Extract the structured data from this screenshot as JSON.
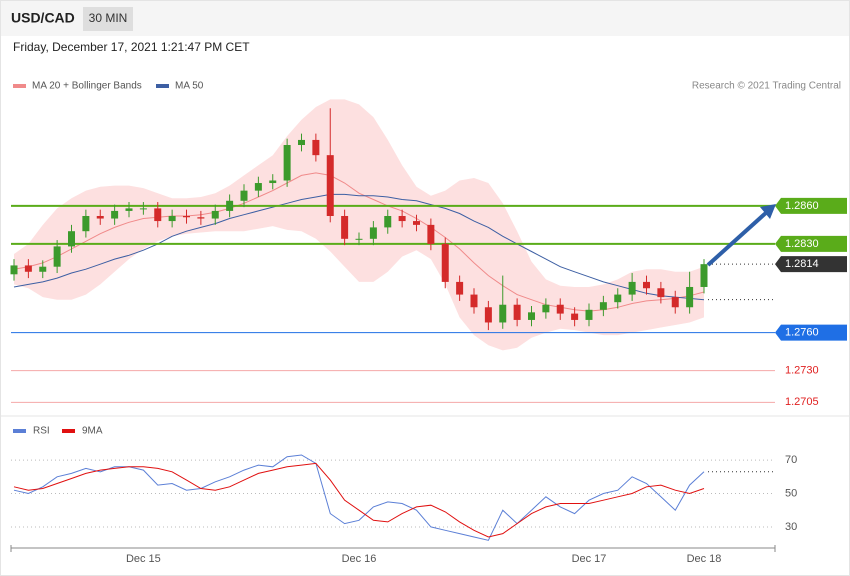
{
  "header": {
    "symbol": "USD/CAD",
    "timeframe": "30 MIN",
    "timestamp": "Friday, December 17, 2021 1:21:47 PM CET"
  },
  "chart_data": [
    {
      "type": "candlestick",
      "credit": "Research © 2021 Trading Central",
      "up_color": "#3c9a2c",
      "down_color": "#d42a2a",
      "ylim": [
        1.2695,
        1.2994
      ],
      "open": [
        1.2806,
        1.2813,
        1.2808,
        1.2812,
        1.2828,
        1.284,
        1.2852,
        1.285,
        1.2856,
        1.2858,
        1.2858,
        1.2848,
        1.2852,
        1.2851,
        1.285,
        1.2856,
        1.2864,
        1.2872,
        1.2878,
        1.288,
        1.2908,
        1.2912,
        1.29,
        1.2852,
        1.2834,
        1.2834,
        1.2843,
        1.2852,
        1.2848,
        1.2845,
        1.283,
        1.28,
        1.279,
        1.278,
        1.2768,
        1.2782,
        1.277,
        1.2776,
        1.2782,
        1.2775,
        1.277,
        1.2778,
        1.2784,
        1.279,
        1.28,
        1.2795,
        1.2788,
        1.278,
        1.2796
      ],
      "high": [
        1.2818,
        1.2818,
        1.2817,
        1.2833,
        1.2845,
        1.2857,
        1.2857,
        1.2861,
        1.2863,
        1.2863,
        1.2863,
        1.2857,
        1.2857,
        1.2856,
        1.2861,
        1.2869,
        1.2877,
        1.2883,
        1.2885,
        1.2913,
        1.2917,
        1.2917,
        1.2937,
        1.2857,
        1.2839,
        1.2848,
        1.2857,
        1.2857,
        1.2853,
        1.285,
        1.2835,
        1.2805,
        1.2795,
        1.2785,
        1.2805,
        1.2787,
        1.2781,
        1.2787,
        1.2787,
        1.278,
        1.2783,
        1.2789,
        1.2795,
        1.2807,
        1.2805,
        1.28,
        1.2793,
        1.2808,
        1.2818
      ],
      "low": [
        1.2801,
        1.2803,
        1.2803,
        1.2807,
        1.2823,
        1.2835,
        1.2845,
        1.2845,
        1.2851,
        1.2853,
        1.2843,
        1.2843,
        1.2846,
        1.2845,
        1.2845,
        1.2851,
        1.2859,
        1.2867,
        1.2873,
        1.2875,
        1.2903,
        1.2895,
        1.2847,
        1.2829,
        1.2829,
        1.2829,
        1.2838,
        1.2843,
        1.284,
        1.2825,
        1.2795,
        1.2785,
        1.2775,
        1.2762,
        1.2763,
        1.2765,
        1.2765,
        1.2771,
        1.277,
        1.2765,
        1.2765,
        1.2773,
        1.2779,
        1.2785,
        1.279,
        1.2783,
        1.2775,
        1.2775,
        1.2791
      ],
      "close": [
        1.2813,
        1.2808,
        1.2812,
        1.2828,
        1.284,
        1.2852,
        1.285,
        1.2856,
        1.2858,
        1.2858,
        1.2848,
        1.2852,
        1.2851,
        1.285,
        1.2856,
        1.2864,
        1.2872,
        1.2878,
        1.288,
        1.2908,
        1.2912,
        1.29,
        1.2852,
        1.2834,
        1.2834,
        1.2843,
        1.2852,
        1.2848,
        1.2845,
        1.283,
        1.28,
        1.279,
        1.278,
        1.2768,
        1.2782,
        1.277,
        1.2776,
        1.2782,
        1.2775,
        1.277,
        1.2778,
        1.2784,
        1.279,
        1.28,
        1.2795,
        1.2788,
        1.278,
        1.2796,
        1.2814
      ],
      "series": [
        {
          "name": "MA 20 + Bollinger Bands",
          "color": "#f08a8a",
          "band_color": "#fde0e0",
          "values": [
            1.281,
            1.2812,
            1.2815,
            1.282,
            1.2826,
            1.2832,
            1.2838,
            1.2843,
            1.2847,
            1.285,
            1.2851,
            1.2852,
            1.2852,
            1.2853,
            1.2855,
            1.2858,
            1.2862,
            1.2867,
            1.2872,
            1.2878,
            1.2884,
            1.2886,
            1.2884,
            1.2878,
            1.287,
            1.2865,
            1.286,
            1.2856,
            1.285,
            1.2843,
            1.2835,
            1.2826,
            1.2815,
            1.2805,
            1.2797,
            1.279,
            1.2786,
            1.2782,
            1.278,
            1.2778,
            1.2777,
            1.2778,
            1.278,
            1.2783,
            1.2785,
            1.2786,
            1.2787,
            1.2789,
            1.2792
          ],
          "band_upper": [
            1.2822,
            1.283,
            1.2845,
            1.2858,
            1.2866,
            1.2872,
            1.2875,
            1.2876,
            1.2876,
            1.2874,
            1.287,
            1.2866,
            1.2866,
            1.2867,
            1.287,
            1.2876,
            1.2884,
            1.2892,
            1.29,
            1.2915,
            1.2928,
            1.2938,
            1.2944,
            1.2944,
            1.294,
            1.293,
            1.2912,
            1.2892,
            1.2875,
            1.2868,
            1.2872,
            1.288,
            1.2882,
            1.2878,
            1.2862,
            1.284,
            1.2816,
            1.2802,
            1.2797,
            1.2796,
            1.2796,
            1.2798,
            1.2802,
            1.2808,
            1.281,
            1.281,
            1.2808,
            1.2808,
            1.2812
          ],
          "band_lower": [
            1.2798,
            1.2795,
            1.2788,
            1.2786,
            1.2786,
            1.279,
            1.2798,
            1.2808,
            1.2818,
            1.2826,
            1.2832,
            1.2836,
            1.2838,
            1.2839,
            1.284,
            1.284,
            1.284,
            1.2842,
            1.2844,
            1.2841,
            1.284,
            1.2834,
            1.2824,
            1.2812,
            1.28,
            1.28,
            1.2808,
            1.282,
            1.2825,
            1.2818,
            1.2798,
            1.2772,
            1.2758,
            1.275,
            1.2746,
            1.2748,
            1.2756,
            1.276,
            1.2763,
            1.2762,
            1.276,
            1.2758,
            1.2758,
            1.276,
            1.2762,
            1.2764,
            1.2766,
            1.2768,
            1.2772
          ]
        },
        {
          "name": "MA 50",
          "color": "#3d5fa3",
          "values": [
            1.2796,
            1.2798,
            1.28,
            1.2803,
            1.2807,
            1.281,
            1.2814,
            1.2818,
            1.2821,
            1.2825,
            1.283,
            1.2836,
            1.284,
            1.2843,
            1.2846,
            1.285,
            1.2853,
            1.2856,
            1.2859,
            1.2862,
            1.2865,
            1.2867,
            1.2869,
            1.2869,
            1.2868,
            1.2868,
            1.2867,
            1.2865,
            1.2864,
            1.2861,
            1.2858,
            1.2854,
            1.2848,
            1.2843,
            1.2836,
            1.283,
            1.2824,
            1.2818,
            1.2812,
            1.2808,
            1.2804,
            1.28,
            1.2797,
            1.2794,
            1.2791,
            1.2789,
            1.2788,
            1.2787,
            1.2786
          ]
        }
      ],
      "levels": [
        {
          "value": 1.286,
          "label": "1.2860",
          "color": "#5aac1a",
          "line": "solid",
          "label_style": "box"
        },
        {
          "value": 1.283,
          "label": "1.2830",
          "color": "#5aac1a",
          "line": "solid",
          "label_style": "box"
        },
        {
          "value": 1.2814,
          "label": "1.2814",
          "color": "#333333",
          "line": "dotted",
          "label_style": "box"
        },
        {
          "value": 1.276,
          "label": "1.2760",
          "color": "#1f6fe5",
          "line": "solid",
          "label_style": "box"
        },
        {
          "value": 1.273,
          "label": "1.2730",
          "color": "#e02020",
          "line": "solid",
          "label_style": "text"
        },
        {
          "value": 1.2705,
          "label": "1.2705",
          "color": "#e02020",
          "line": "solid",
          "label_style": "text"
        }
      ]
    },
    {
      "type": "line",
      "categories": [
        null,
        null,
        null,
        null,
        null,
        null,
        null,
        null,
        null,
        "Dec 15",
        null,
        null,
        null,
        null,
        null,
        null,
        null,
        null,
        null,
        null,
        null,
        null,
        null,
        null,
        "Dec 16",
        null,
        null,
        null,
        null,
        null,
        null,
        null,
        null,
        null,
        null,
        null,
        null,
        null,
        null,
        null,
        "Dec 17",
        null,
        null,
        null,
        null,
        null,
        null,
        null,
        "Dec 18"
      ],
      "ylim": [
        18,
        82
      ],
      "yticks": [
        30,
        50,
        70
      ],
      "grid": true,
      "series": [
        {
          "name": "RSI",
          "color": "#5b7fd6",
          "values": [
            52,
            50,
            54,
            60,
            62,
            65,
            63,
            66,
            66,
            64,
            55,
            56,
            52,
            53,
            57,
            60,
            64,
            67,
            66,
            72,
            73,
            68,
            38,
            32,
            34,
            42,
            45,
            44,
            40,
            30,
            28,
            26,
            24,
            22,
            40,
            32,
            40,
            48,
            42,
            38,
            46,
            50,
            52,
            60,
            56,
            48,
            40,
            55,
            63
          ]
        },
        {
          "name": "9MA",
          "color": "#e01010",
          "values": [
            54,
            52,
            53,
            56,
            59,
            62,
            64,
            65,
            66,
            66,
            65,
            63,
            58,
            53,
            52,
            54,
            58,
            62,
            64,
            66,
            67,
            68,
            58,
            46,
            40,
            34,
            33,
            38,
            42,
            43,
            39,
            33,
            28,
            24,
            26,
            32,
            38,
            42,
            44,
            44,
            44,
            46,
            48,
            50,
            54,
            55,
            52,
            50,
            53
          ]
        }
      ]
    }
  ]
}
